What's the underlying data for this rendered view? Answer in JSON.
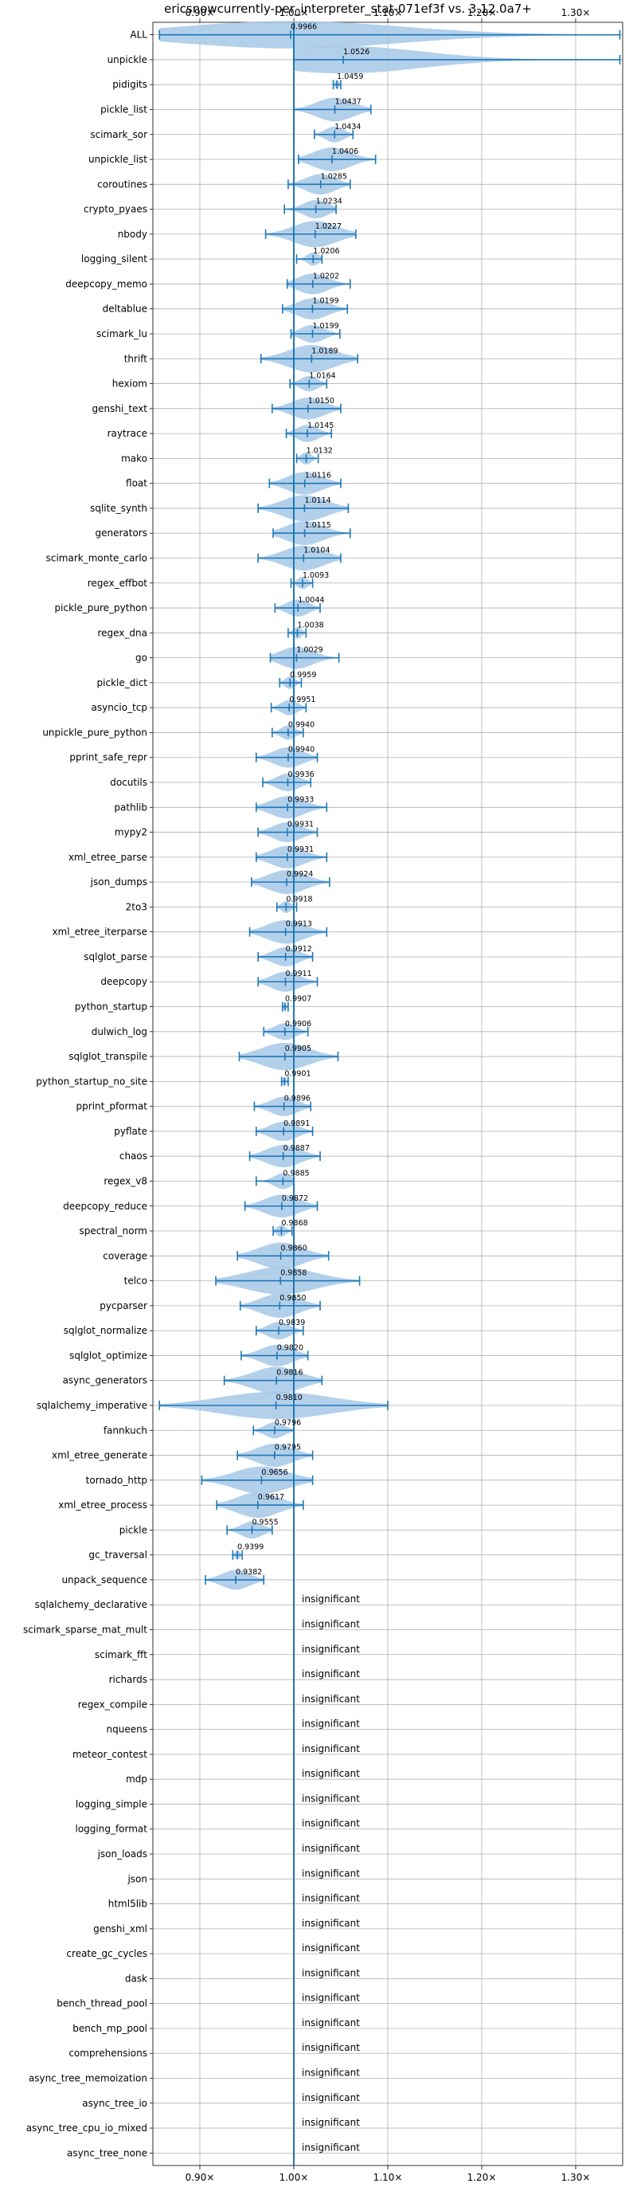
{
  "chart_data": {
    "type": "violin",
    "title": "ericsnowcurrently-per_interpreter_stat-071ef3f vs. 3.12.0a7+",
    "xlim": [
      0.85,
      1.35
    ],
    "xticks": [
      0.9,
      1.0,
      1.1,
      1.2,
      1.3
    ],
    "xtick_labels": [
      "0.90×",
      "1.00×",
      "1.10×",
      "1.20×",
      "1.30×"
    ],
    "grid": true,
    "reference_line": 1.0,
    "accent_color": "#1f77b4",
    "violin_color": "#a6c8e8",
    "insignificant_label": "insignificant",
    "benchmarks": [
      {
        "name": "ALL",
        "label": "0.9966",
        "value": 0.9966,
        "min": 0.857,
        "max": 1.347
      },
      {
        "name": "unpickle",
        "label": "1.0526",
        "value": 1.0526,
        "min": 1.0,
        "max": 1.347
      },
      {
        "name": "pidigits",
        "label": "1.0459",
        "value": 1.0459,
        "min": 1.042,
        "max": 1.05
      },
      {
        "name": "pickle_list",
        "label": "1.0437",
        "value": 1.0437,
        "min": 1.0,
        "max": 1.082
      },
      {
        "name": "scimark_sor",
        "label": "1.0434",
        "value": 1.0434,
        "min": 1.022,
        "max": 1.063
      },
      {
        "name": "unpickle_list",
        "label": "1.0406",
        "value": 1.0406,
        "min": 1.005,
        "max": 1.087
      },
      {
        "name": "coroutines",
        "label": "1.0285",
        "value": 1.0285,
        "min": 0.994,
        "max": 1.06
      },
      {
        "name": "crypto_pyaes",
        "label": "1.0234",
        "value": 1.0234,
        "min": 0.99,
        "max": 1.045
      },
      {
        "name": "nbody",
        "label": "1.0227",
        "value": 1.0227,
        "min": 0.97,
        "max": 1.066
      },
      {
        "name": "logging_silent",
        "label": "1.0206",
        "value": 1.0206,
        "min": 1.003,
        "max": 1.03
      },
      {
        "name": "deepcopy_memo",
        "label": "1.0202",
        "value": 1.0202,
        "min": 0.993,
        "max": 1.06
      },
      {
        "name": "deltablue",
        "label": "1.0199",
        "value": 1.0199,
        "min": 0.988,
        "max": 1.057
      },
      {
        "name": "scimark_lu",
        "label": "1.0199",
        "value": 1.0199,
        "min": 0.997,
        "max": 1.049
      },
      {
        "name": "thrift",
        "label": "1.0189",
        "value": 1.0189,
        "min": 0.965,
        "max": 1.068
      },
      {
        "name": "hexiom",
        "label": "1.0164",
        "value": 1.0164,
        "min": 0.996,
        "max": 1.035
      },
      {
        "name": "genshi_text",
        "label": "1.0150",
        "value": 1.015,
        "min": 0.977,
        "max": 1.05
      },
      {
        "name": "raytrace",
        "label": "1.0145",
        "value": 1.0145,
        "min": 0.992,
        "max": 1.04
      },
      {
        "name": "mako",
        "label": "1.0132",
        "value": 1.0132,
        "min": 1.003,
        "max": 1.026
      },
      {
        "name": "float",
        "label": "1.0116",
        "value": 1.0116,
        "min": 0.974,
        "max": 1.05
      },
      {
        "name": "sqlite_synth",
        "label": "1.0114",
        "value": 1.0114,
        "min": 0.962,
        "max": 1.058
      },
      {
        "name": "generators",
        "label": "1.0115",
        "value": 1.0115,
        "min": 0.978,
        "max": 1.06
      },
      {
        "name": "scimark_monte_carlo",
        "label": "1.0104",
        "value": 1.0104,
        "min": 0.962,
        "max": 1.05
      },
      {
        "name": "regex_effbot",
        "label": "1.0093",
        "value": 1.0093,
        "min": 0.997,
        "max": 1.02
      },
      {
        "name": "pickle_pure_python",
        "label": "1.0044",
        "value": 1.0044,
        "min": 0.98,
        "max": 1.028
      },
      {
        "name": "regex_dna",
        "label": "1.0038",
        "value": 1.0038,
        "min": 0.994,
        "max": 1.013
      },
      {
        "name": "go",
        "label": "1.0029",
        "value": 1.0029,
        "min": 0.975,
        "max": 1.048
      },
      {
        "name": "pickle_dict",
        "label": "0.9959",
        "value": 0.9959,
        "min": 0.985,
        "max": 1.008
      },
      {
        "name": "asyncio_tcp",
        "label": "0.9951",
        "value": 0.9951,
        "min": 0.976,
        "max": 1.013
      },
      {
        "name": "unpickle_pure_python",
        "label": "0.9940",
        "value": 0.994,
        "min": 0.977,
        "max": 1.01
      },
      {
        "name": "pprint_safe_repr",
        "label": "0.9940",
        "value": 0.994,
        "min": 0.96,
        "max": 1.025
      },
      {
        "name": "docutils",
        "label": "0.9936",
        "value": 0.9936,
        "min": 0.967,
        "max": 1.018
      },
      {
        "name": "pathlib",
        "label": "0.9933",
        "value": 0.9933,
        "min": 0.96,
        "max": 1.035
      },
      {
        "name": "mypy2",
        "label": "0.9931",
        "value": 0.9931,
        "min": 0.962,
        "max": 1.025
      },
      {
        "name": "xml_etree_parse",
        "label": "0.9931",
        "value": 0.9931,
        "min": 0.96,
        "max": 1.035
      },
      {
        "name": "json_dumps",
        "label": "0.9924",
        "value": 0.9924,
        "min": 0.955,
        "max": 1.038
      },
      {
        "name": "2to3",
        "label": "0.9918",
        "value": 0.9918,
        "min": 0.982,
        "max": 1.003
      },
      {
        "name": "xml_etree_iterparse",
        "label": "0.9913",
        "value": 0.9913,
        "min": 0.953,
        "max": 1.035
      },
      {
        "name": "sqlglot_parse",
        "label": "0.9912",
        "value": 0.9912,
        "min": 0.962,
        "max": 1.02
      },
      {
        "name": "deepcopy",
        "label": "0.9911",
        "value": 0.9911,
        "min": 0.962,
        "max": 1.025
      },
      {
        "name": "python_startup",
        "label": "0.9907",
        "value": 0.9907,
        "min": 0.988,
        "max": 0.994
      },
      {
        "name": "dulwich_log",
        "label": "0.9906",
        "value": 0.9906,
        "min": 0.968,
        "max": 1.015
      },
      {
        "name": "sqlglot_transpile",
        "label": "0.9905",
        "value": 0.9905,
        "min": 0.942,
        "max": 1.047
      },
      {
        "name": "python_startup_no_site",
        "label": "0.9901",
        "value": 0.9901,
        "min": 0.987,
        "max": 0.994
      },
      {
        "name": "pprint_pformat",
        "label": "0.9896",
        "value": 0.9896,
        "min": 0.958,
        "max": 1.018
      },
      {
        "name": "pyflate",
        "label": "0.9891",
        "value": 0.9891,
        "min": 0.96,
        "max": 1.02
      },
      {
        "name": "chaos",
        "label": "0.9887",
        "value": 0.9887,
        "min": 0.953,
        "max": 1.028
      },
      {
        "name": "regex_v8",
        "label": "0.9885",
        "value": 0.9885,
        "min": 0.96,
        "max": 1.0
      },
      {
        "name": "deepcopy_reduce",
        "label": "0.9872",
        "value": 0.9872,
        "min": 0.948,
        "max": 1.025
      },
      {
        "name": "spectral_norm",
        "label": "0.9868",
        "value": 0.9868,
        "min": 0.978,
        "max": 0.998
      },
      {
        "name": "coverage",
        "label": "0.9860",
        "value": 0.986,
        "min": 0.94,
        "max": 1.037
      },
      {
        "name": "telco",
        "label": "0.9858",
        "value": 0.9858,
        "min": 0.917,
        "max": 1.07
      },
      {
        "name": "pycparser",
        "label": "0.9850",
        "value": 0.985,
        "min": 0.943,
        "max": 1.028
      },
      {
        "name": "sqlglot_normalize",
        "label": "0.9839",
        "value": 0.9839,
        "min": 0.96,
        "max": 1.01
      },
      {
        "name": "sqlglot_optimize",
        "label": "0.9820",
        "value": 0.982,
        "min": 0.944,
        "max": 1.015
      },
      {
        "name": "async_generators",
        "label": "0.9816",
        "value": 0.9816,
        "min": 0.926,
        "max": 1.03
      },
      {
        "name": "sqlalchemy_imperative",
        "label": "0.9810",
        "value": 0.981,
        "min": 0.857,
        "max": 1.1
      },
      {
        "name": "fannkuch",
        "label": "0.9796",
        "value": 0.9796,
        "min": 0.957,
        "max": 1.0
      },
      {
        "name": "xml_etree_generate",
        "label": "0.9795",
        "value": 0.9795,
        "min": 0.94,
        "max": 1.02
      },
      {
        "name": "tornado_http",
        "label": "0.9656",
        "value": 0.9656,
        "min": 0.902,
        "max": 1.02
      },
      {
        "name": "xml_etree_process",
        "label": "0.9617",
        "value": 0.9617,
        "min": 0.918,
        "max": 1.01
      },
      {
        "name": "pickle",
        "label": "0.9555",
        "value": 0.9555,
        "min": 0.929,
        "max": 0.977
      },
      {
        "name": "gc_traversal",
        "label": "0.9399",
        "value": 0.9399,
        "min": 0.935,
        "max": 0.945
      },
      {
        "name": "unpack_sequence",
        "label": "0.9382",
        "value": 0.9382,
        "min": 0.906,
        "max": 0.968
      },
      {
        "name": "sqlalchemy_declarative",
        "label": "insignificant",
        "value": null
      },
      {
        "name": "scimark_sparse_mat_mult",
        "label": "insignificant",
        "value": null
      },
      {
        "name": "scimark_fft",
        "label": "insignificant",
        "value": null
      },
      {
        "name": "richards",
        "label": "insignificant",
        "value": null
      },
      {
        "name": "regex_compile",
        "label": "insignificant",
        "value": null
      },
      {
        "name": "nqueens",
        "label": "insignificant",
        "value": null
      },
      {
        "name": "meteor_contest",
        "label": "insignificant",
        "value": null
      },
      {
        "name": "mdp",
        "label": "insignificant",
        "value": null
      },
      {
        "name": "logging_simple",
        "label": "insignificant",
        "value": null
      },
      {
        "name": "logging_format",
        "label": "insignificant",
        "value": null
      },
      {
        "name": "json_loads",
        "label": "insignificant",
        "value": null
      },
      {
        "name": "json",
        "label": "insignificant",
        "value": null
      },
      {
        "name": "html5lib",
        "label": "insignificant",
        "value": null
      },
      {
        "name": "genshi_xml",
        "label": "insignificant",
        "value": null
      },
      {
        "name": "create_gc_cycles",
        "label": "insignificant",
        "value": null
      },
      {
        "name": "dask",
        "label": "insignificant",
        "value": null
      },
      {
        "name": "bench_thread_pool",
        "label": "insignificant",
        "value": null
      },
      {
        "name": "bench_mp_pool",
        "label": "insignificant",
        "value": null
      },
      {
        "name": "comprehensions",
        "label": "insignificant",
        "value": null
      },
      {
        "name": "async_tree_memoization",
        "label": "insignificant",
        "value": null
      },
      {
        "name": "async_tree_io",
        "label": "insignificant",
        "value": null
      },
      {
        "name": "async_tree_cpu_io_mixed",
        "label": "insignificant",
        "value": null
      },
      {
        "name": "async_tree_none",
        "label": "insignificant",
        "value": null
      }
    ]
  }
}
